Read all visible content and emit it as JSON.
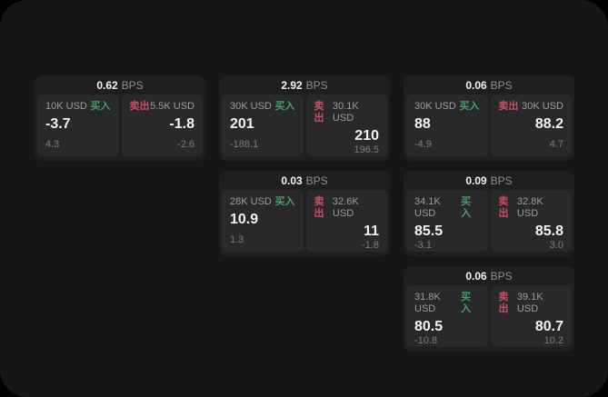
{
  "labels": {
    "bps_unit": "BPS",
    "buy": "买入",
    "sell": "卖出"
  },
  "colors": {
    "page_bg": "#161616",
    "card_bg": "#1f1f20",
    "panel_bg": "#29292b",
    "buy_green": "#42a168",
    "sell_red": "#c94f63",
    "label_gray": "#9c9c9c",
    "sub_gray": "#7d7d7d",
    "value_white": "#f2f2f2",
    "bps_gray": "#8e8e8e"
  },
  "cards": [
    {
      "bps_value": "0.62",
      "grid": {
        "col": 1,
        "row": 1
      },
      "buy": {
        "amount": "10K USD",
        "value": "-3.7",
        "sub": "4.3"
      },
      "sell": {
        "amount": "5.5K USD",
        "value": "-1.8",
        "sub": "-2.6"
      }
    },
    {
      "bps_value": "2.92",
      "grid": {
        "col": 2,
        "row": 1
      },
      "buy": {
        "amount": "30K USD",
        "value": "201",
        "sub": "-188.1"
      },
      "sell": {
        "amount": "30.1K USD",
        "value": "210",
        "sub": "196.5"
      }
    },
    {
      "bps_value": "0.06",
      "grid": {
        "col": 3,
        "row": 1
      },
      "buy": {
        "amount": "30K USD",
        "value": "88",
        "sub": "-4.9"
      },
      "sell": {
        "amount": "30K USD",
        "value": "88.2",
        "sub": "4.7"
      }
    },
    {
      "bps_value": "0.03",
      "grid": {
        "col": 2,
        "row": 2
      },
      "buy": {
        "amount": "28K USD",
        "value": "10.9",
        "sub": "1.3"
      },
      "sell": {
        "amount": "32.6K USD",
        "value": "11",
        "sub": "-1.8"
      }
    },
    {
      "bps_value": "0.09",
      "grid": {
        "col": 3,
        "row": 2
      },
      "buy": {
        "amount": "34.1K USD",
        "value": "85.5",
        "sub": "-3.1"
      },
      "sell": {
        "amount": "32.8K USD",
        "value": "85.8",
        "sub": "3.0"
      }
    },
    {
      "bps_value": "0.06",
      "grid": {
        "col": 3,
        "row": 3
      },
      "buy": {
        "amount": "31.8K USD",
        "value": "80.5",
        "sub": "-10.8"
      },
      "sell": {
        "amount": "39.1K USD",
        "value": "80.7",
        "sub": "10.2"
      }
    }
  ]
}
